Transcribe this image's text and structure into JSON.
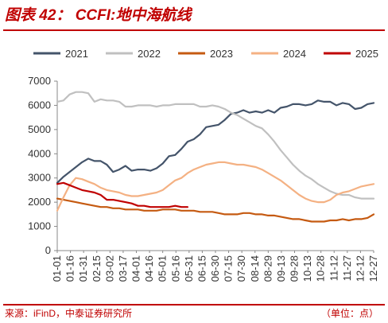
{
  "header": {
    "figure_title": "图表 42： CCFI:地中海航线"
  },
  "footer": {
    "source": "来源：iFinD，中泰证券研究所",
    "unit": "（单位：点）"
  },
  "chart_data": {
    "type": "line",
    "title": "图表 42： CCFI:地中海航线",
    "xlabel": "",
    "ylabel": "",
    "ylim": [
      0,
      7000
    ],
    "yticks": [
      0,
      1000,
      2000,
      3000,
      4000,
      5000,
      6000,
      7000
    ],
    "x_tick_labels": [
      "01-01",
      "01-16",
      "01-31",
      "02-15",
      "03-02",
      "03-17",
      "04-01",
      "04-16",
      "05-01",
      "05-16",
      "05-31",
      "06-15",
      "06-30",
      "07-15",
      "07-30",
      "08-14",
      "08-29",
      "09-13",
      "09-28",
      "10-13",
      "10-28",
      "11-12",
      "11-27",
      "12-12",
      "12-27"
    ],
    "week_range": [
      1,
      52
    ],
    "grid": false,
    "legend_position": "top",
    "series": [
      {
        "name": "2021",
        "color": "#44546a",
        "weeks": [
          1,
          2,
          3,
          4,
          5,
          6,
          7,
          8,
          9,
          10,
          11,
          12,
          13,
          14,
          15,
          16,
          17,
          18,
          19,
          20,
          21,
          22,
          23,
          24,
          25,
          26,
          27,
          28,
          29,
          30,
          31,
          32,
          33,
          34,
          35,
          36,
          37,
          38,
          39,
          40,
          41,
          42,
          43,
          44,
          45,
          46,
          47,
          48,
          49,
          50,
          51,
          52
        ],
        "values": [
          2800,
          3050,
          3250,
          3450,
          3650,
          3800,
          3700,
          3700,
          3550,
          3250,
          3350,
          3500,
          3300,
          3350,
          3350,
          3300,
          3400,
          3600,
          3900,
          3950,
          4200,
          4500,
          4600,
          4800,
          5100,
          5150,
          5200,
          5400,
          5650,
          5700,
          5800,
          5700,
          5750,
          5700,
          5800,
          5700,
          5900,
          5950,
          6050,
          6050,
          6000,
          6050,
          6200,
          6150,
          6150,
          6000,
          6100,
          6050,
          5850,
          5900,
          6050,
          6100
        ]
      },
      {
        "name": "2022",
        "color": "#c0c0c0",
        "weeks": [
          1,
          2,
          3,
          4,
          5,
          6,
          7,
          8,
          9,
          10,
          11,
          12,
          13,
          14,
          15,
          16,
          17,
          18,
          19,
          20,
          21,
          22,
          23,
          24,
          25,
          26,
          27,
          28,
          29,
          30,
          31,
          32,
          33,
          34,
          35,
          36,
          37,
          38,
          39,
          40,
          41,
          42,
          43,
          44,
          45,
          46,
          47,
          48,
          49,
          50,
          51,
          52
        ],
        "values": [
          6150,
          6200,
          6450,
          6550,
          6550,
          6500,
          6150,
          6250,
          6200,
          6200,
          6150,
          5950,
          5950,
          6000,
          6000,
          6000,
          5950,
          6000,
          6000,
          6050,
          6050,
          6050,
          6050,
          5950,
          5950,
          6000,
          5950,
          5850,
          5700,
          5600,
          5450,
          5300,
          5150,
          5050,
          4800,
          4500,
          4150,
          3850,
          3550,
          3300,
          3100,
          2950,
          2750,
          2600,
          2450,
          2350,
          2300,
          2300,
          2200,
          2150,
          2150,
          2150
        ]
      },
      {
        "name": "2023",
        "color": "#c55a11",
        "weeks": [
          1,
          2,
          3,
          4,
          5,
          6,
          7,
          8,
          9,
          10,
          11,
          12,
          13,
          14,
          15,
          16,
          17,
          18,
          19,
          20,
          21,
          22,
          23,
          24,
          25,
          26,
          27,
          28,
          29,
          30,
          31,
          32,
          33,
          34,
          35,
          36,
          37,
          38,
          39,
          40,
          41,
          42,
          43,
          44,
          45,
          46,
          47,
          48,
          49,
          50,
          51,
          52
        ],
        "values": [
          2150,
          2100,
          2050,
          2000,
          1950,
          1900,
          1850,
          1800,
          1800,
          1750,
          1750,
          1700,
          1700,
          1700,
          1650,
          1650,
          1650,
          1700,
          1700,
          1700,
          1650,
          1650,
          1650,
          1600,
          1600,
          1600,
          1550,
          1500,
          1500,
          1500,
          1550,
          1550,
          1500,
          1500,
          1450,
          1450,
          1400,
          1350,
          1300,
          1300,
          1250,
          1200,
          1200,
          1200,
          1250,
          1250,
          1300,
          1250,
          1300,
          1300,
          1350,
          1500
        ]
      },
      {
        "name": "2024",
        "color": "#f4b183",
        "weeks": [
          1,
          2,
          3,
          4,
          5,
          6,
          7,
          8,
          9,
          10,
          11,
          12,
          13,
          14,
          15,
          16,
          17,
          18,
          19,
          20,
          21,
          22,
          23,
          24,
          25,
          26,
          27,
          28,
          29,
          30,
          31,
          32,
          33,
          34,
          35,
          36,
          37,
          38,
          39,
          40,
          41,
          42,
          43,
          44,
          45,
          46,
          47,
          48,
          49,
          50,
          51,
          52
        ],
        "values": [
          1650,
          2200,
          2700,
          3000,
          2950,
          2850,
          2750,
          2600,
          2500,
          2450,
          2400,
          2300,
          2250,
          2250,
          2300,
          2350,
          2400,
          2500,
          2700,
          2900,
          3000,
          3200,
          3350,
          3450,
          3550,
          3600,
          3650,
          3650,
          3600,
          3550,
          3550,
          3500,
          3450,
          3350,
          3200,
          3050,
          2900,
          2700,
          2500,
          2300,
          2150,
          2050,
          2000,
          2000,
          2100,
          2300,
          2400,
          2450,
          2550,
          2650,
          2700,
          2750
        ]
      },
      {
        "name": "2025",
        "color": "#c00000",
        "weeks": [
          1,
          2,
          3,
          4,
          5,
          6,
          7,
          8,
          9,
          10,
          11,
          12,
          13,
          14,
          15,
          16,
          17,
          18,
          19,
          20,
          21,
          22
        ],
        "values": [
          2750,
          2800,
          2700,
          2600,
          2500,
          2450,
          2400,
          2300,
          2100,
          2100,
          2050,
          2000,
          1950,
          1850,
          1850,
          1800,
          1800,
          1800,
          1800,
          1850,
          1800,
          1800
        ]
      }
    ]
  }
}
